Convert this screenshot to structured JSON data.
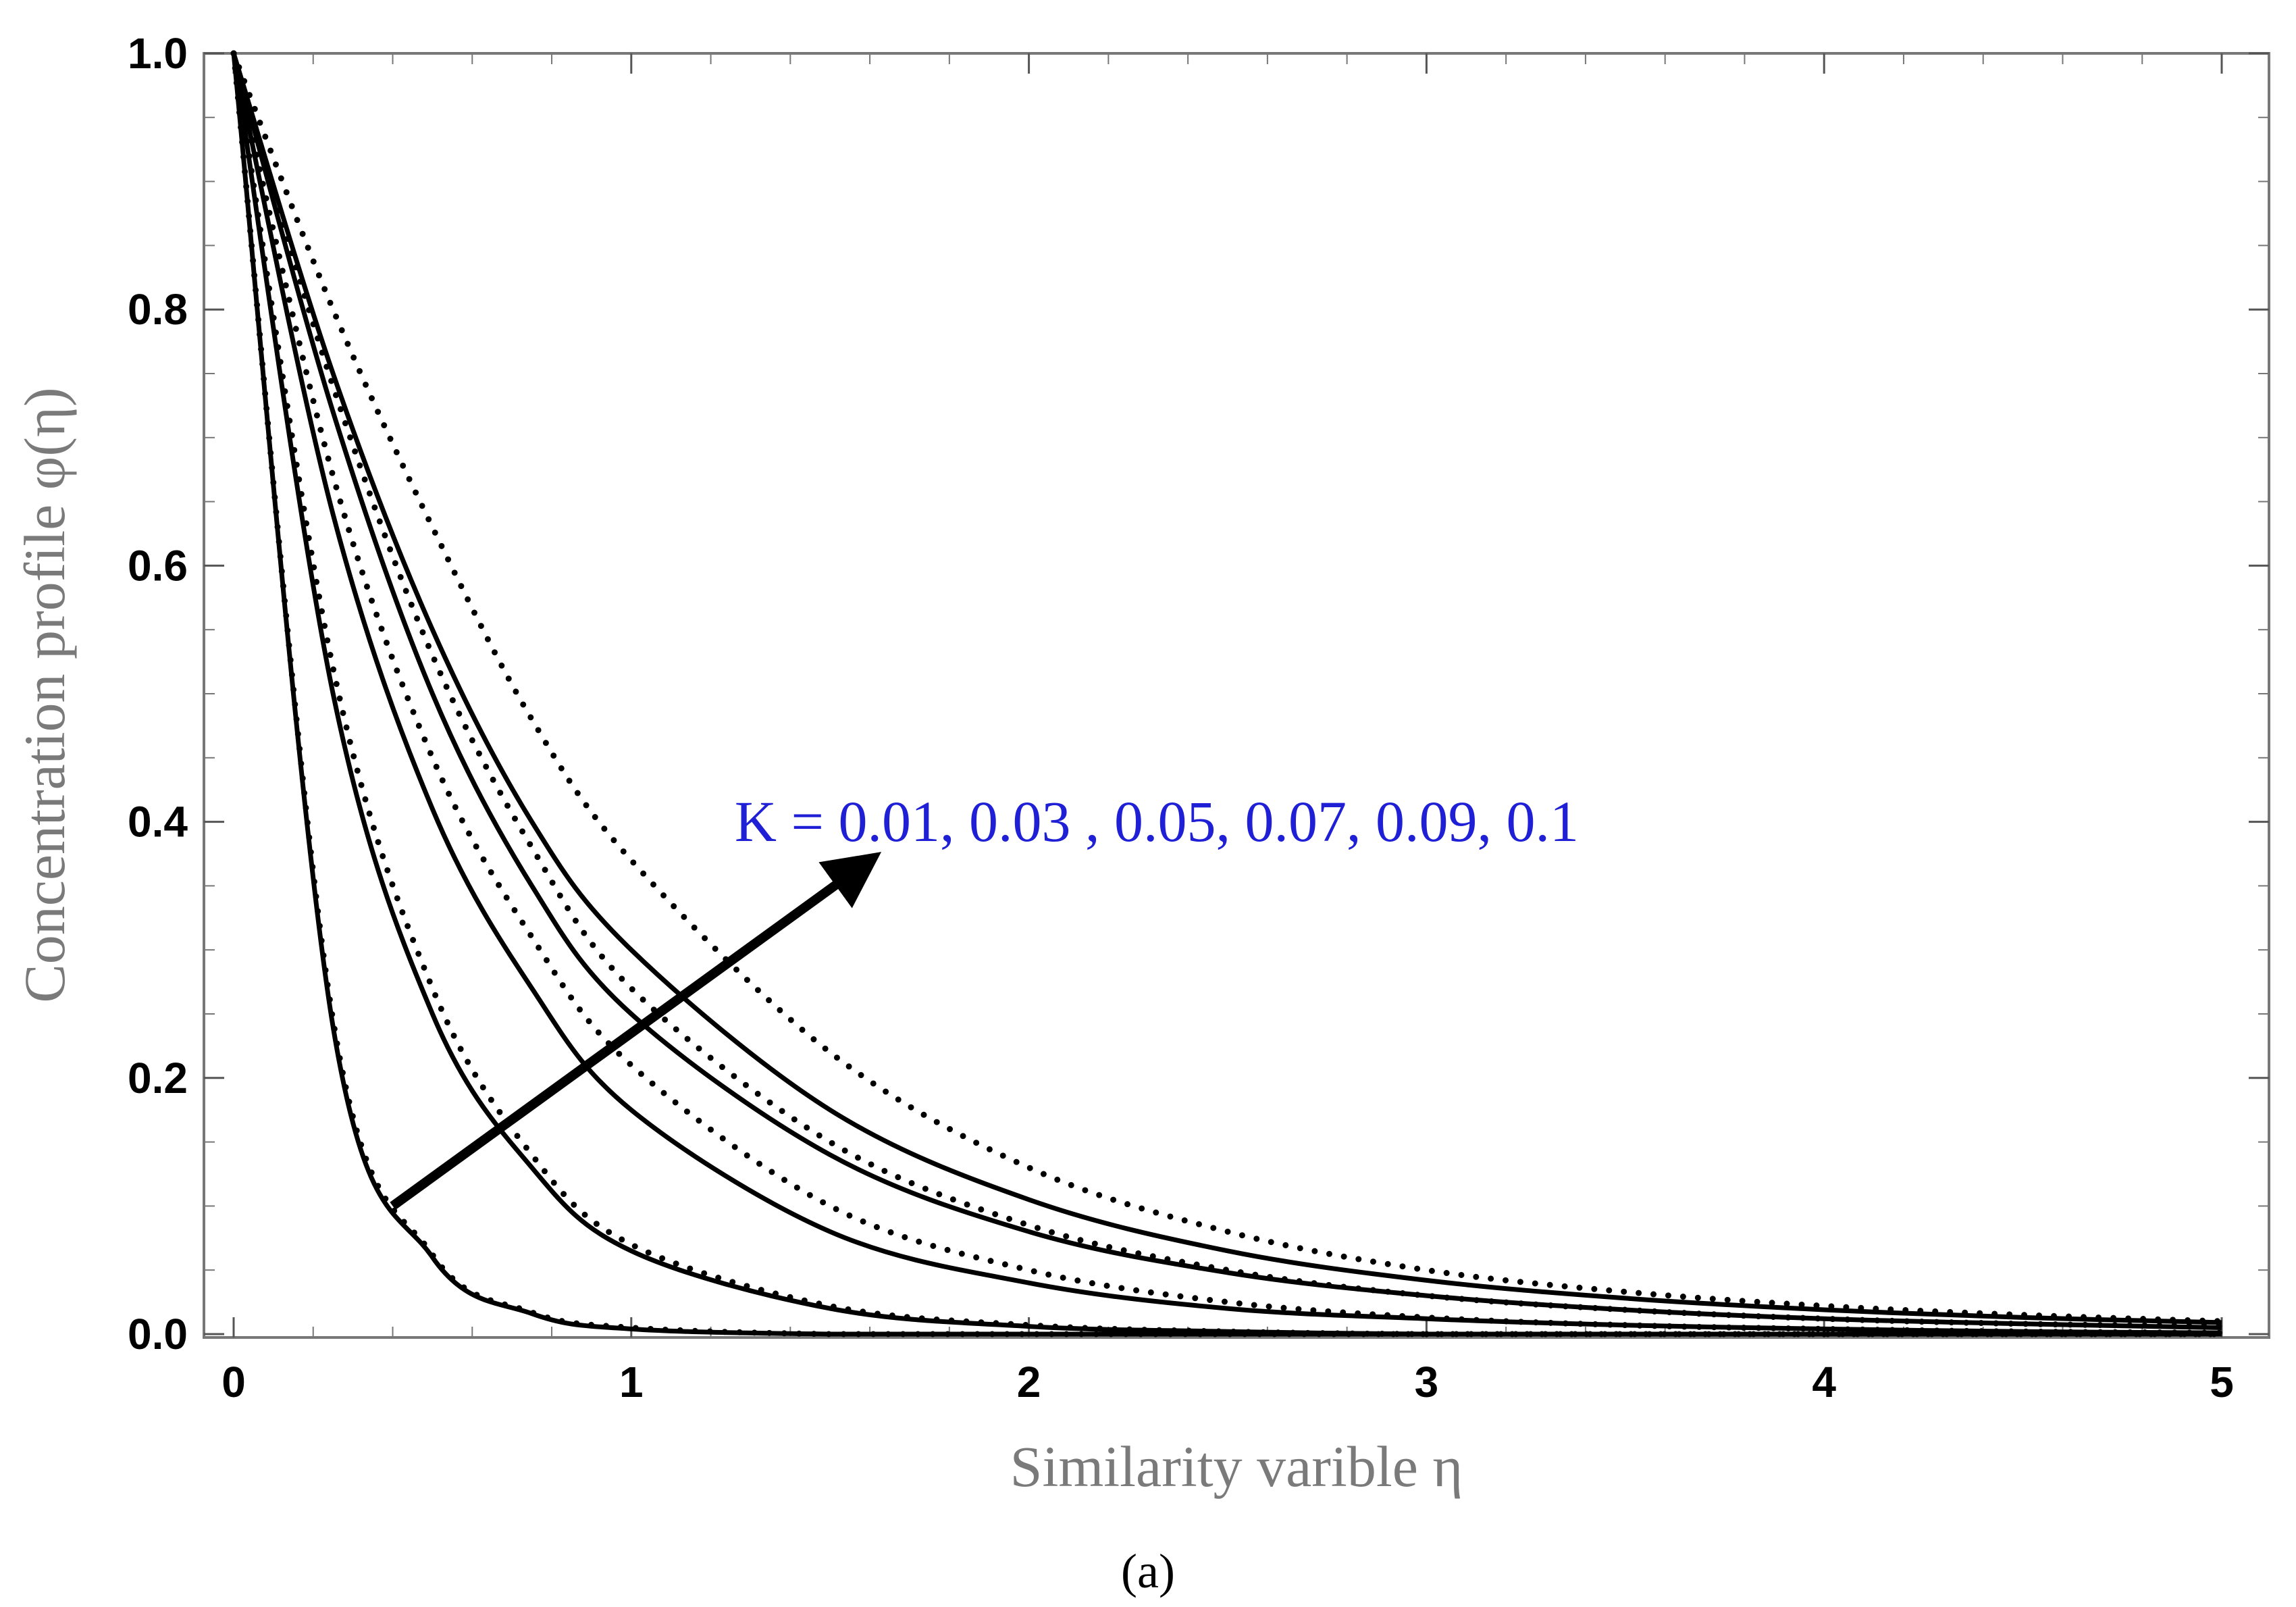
{
  "chart_data": {
    "type": "line",
    "xlabel": "Similarity varible η",
    "ylabel": "Concentration profile φ(η)",
    "xlim": [
      0,
      5
    ],
    "ylim": [
      0,
      1
    ],
    "x_ticks": [
      "0",
      "1",
      "2",
      "3",
      "4",
      "5"
    ],
    "y_ticks": [
      "0.0",
      "0.2",
      "0.4",
      "0.6",
      "0.8",
      "1.0"
    ],
    "grid": false,
    "annotation": {
      "text": "K = 0.01, 0.03 , 0.05, 0.07, 0.09, 0.1",
      "arrow_from": [
        0.4,
        0.1
      ],
      "arrow_to": [
        1.6,
        0.37
      ]
    },
    "caption": "(a)",
    "x": [
      0,
      0.25,
      0.5,
      0.75,
      1.0,
      1.5,
      2.0,
      2.5,
      3.0,
      3.5,
      4.0,
      4.5,
      5.0
    ],
    "series": [
      {
        "style": "solid",
        "values": [
          1.0,
          0.24,
          0.06,
          0.016,
          0.004,
          0.0,
          0.0,
          0.0,
          0.0,
          0.0,
          0.0,
          0.0,
          0.0
        ]
      },
      {
        "style": "dotted",
        "values": [
          1.0,
          0.245,
          0.062,
          0.017,
          0.005,
          0.0,
          0.0,
          0.0,
          0.0,
          0.0,
          0.0,
          0.0,
          0.0
        ]
      },
      {
        "style": "solid",
        "values": [
          1.0,
          0.5,
          0.25,
          0.13,
          0.065,
          0.02,
          0.006,
          0.002,
          0.0,
          0.0,
          0.0,
          0.0,
          0.0
        ]
      },
      {
        "style": "dotted",
        "values": [
          1.0,
          0.52,
          0.27,
          0.14,
          0.07,
          0.022,
          0.007,
          0.002,
          0.0,
          0.0,
          0.0,
          0.0,
          0.0
        ]
      },
      {
        "style": "solid",
        "values": [
          1.0,
          0.64,
          0.41,
          0.27,
          0.175,
          0.08,
          0.04,
          0.02,
          0.012,
          0.007,
          0.004,
          0.002,
          0.001
        ]
      },
      {
        "style": "dotted",
        "values": [
          1.0,
          0.67,
          0.45,
          0.31,
          0.21,
          0.1,
          0.05,
          0.025,
          0.013,
          0.007,
          0.004,
          0.002,
          0.001
        ]
      },
      {
        "style": "solid",
        "values": [
          1.0,
          0.72,
          0.5,
          0.35,
          0.25,
          0.14,
          0.08,
          0.048,
          0.03,
          0.019,
          0.012,
          0.008,
          0.005
        ]
      },
      {
        "style": "dotted",
        "values": [
          1.0,
          0.74,
          0.53,
          0.38,
          0.27,
          0.15,
          0.085,
          0.05,
          0.03,
          0.019,
          0.012,
          0.008,
          0.006
        ]
      },
      {
        "style": "solid",
        "values": [
          1.0,
          0.75,
          0.55,
          0.4,
          0.3,
          0.175,
          0.105,
          0.065,
          0.042,
          0.028,
          0.019,
          0.013,
          0.009
        ]
      },
      {
        "style": "dotted",
        "values": [
          1.0,
          0.8,
          0.63,
          0.48,
          0.37,
          0.22,
          0.13,
          0.08,
          0.05,
          0.033,
          0.022,
          0.015,
          0.01
        ]
      }
    ]
  }
}
